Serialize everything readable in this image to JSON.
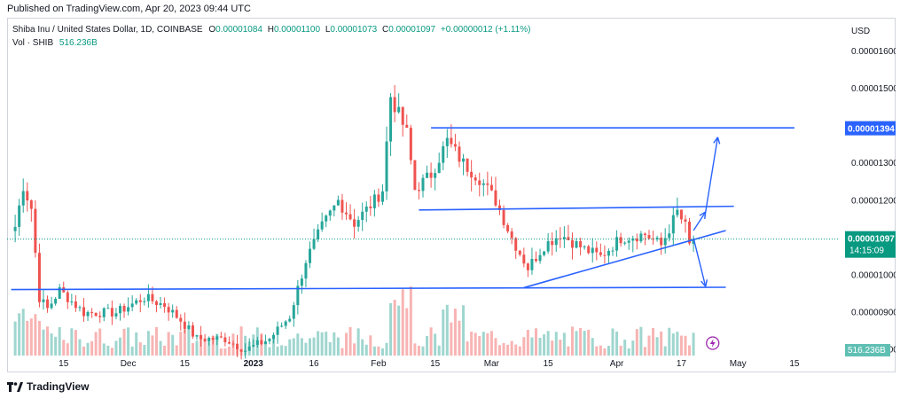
{
  "header": {
    "published": "Published on TradingView.com, Apr 20, 2023 09:44 UTC"
  },
  "legend": {
    "symbol": "Shiba Inu / United States Dollar, 1D, COINBASE",
    "open_label": "O",
    "open": "0.00001084",
    "high_label": "H",
    "high": "0.00001100",
    "low_label": "L",
    "low": "0.00001073",
    "close_label": "C",
    "close": "0.00001097",
    "change": "+0.00000012 (+1.11%)",
    "vol_label": "Vol · SHIB",
    "vol": "516.236B"
  },
  "footer": {
    "brand": "TradingView"
  },
  "colors": {
    "up": "#26a69a",
    "down": "#ef5350",
    "trendline": "#2962ff",
    "up_vol": "#9fd6cf",
    "down_vol": "#f7b4b3",
    "current": "#089981",
    "line_label": "#2962ff"
  },
  "icons": [
    "lightning-icon",
    "tradingview-logo"
  ],
  "chart_data": {
    "type": "candlestick",
    "currency": "USD",
    "ylim": [
      7.4e-06,
      1.69e-05
    ],
    "y_ticks": [
      "0.00001600",
      "0.00001500",
      "0.00001300",
      "0.00001200",
      "0.00001000",
      "0.00000900",
      "0.00000800"
    ],
    "x_ticks": [
      "15",
      "Dec",
      "15",
      "2023",
      "16",
      "Feb",
      "15",
      "Mar",
      "15",
      "Apr",
      "17",
      "May",
      "15"
    ],
    "x_tick_dates": [
      "2022-11-15",
      "2022-12-01",
      "2022-12-15",
      "2023-01-01",
      "2023-01-16",
      "2023-02-01",
      "2023-02-15",
      "2023-03-01",
      "2023-03-15",
      "2023-04-01",
      "2023-04-17",
      "2023-05-01",
      "2023-05-15"
    ],
    "current": {
      "price": "0.00001097",
      "countdown": "14:15:09"
    },
    "marked_level": "0.00001394",
    "volume_label": "516.236B",
    "anchors": [
      [
        "2022-11-03",
        1.13e-05
      ],
      [
        "2022-11-05",
        1.24e-05
      ],
      [
        "2022-11-07",
        1.18e-05
      ],
      [
        "2022-11-09",
        9.4e-06
      ],
      [
        "2022-11-11",
        9.1e-06
      ],
      [
        "2022-11-14",
        9.6e-06
      ],
      [
        "2022-11-20",
        9e-06
      ],
      [
        "2022-11-28",
        9e-06
      ],
      [
        "2022-12-05",
        9.4e-06
      ],
      [
        "2022-12-10",
        9.2e-06
      ],
      [
        "2022-12-14",
        8.8e-06
      ],
      [
        "2022-12-18",
        8.3e-06
      ],
      [
        "2022-12-25",
        8.3e-06
      ],
      [
        "2022-12-30",
        8e-06
      ],
      [
        "2023-01-05",
        8.3e-06
      ],
      [
        "2023-01-10",
        8.9e-06
      ],
      [
        "2023-01-14",
        1.04e-05
      ],
      [
        "2023-01-18",
        1.13e-05
      ],
      [
        "2023-01-22",
        1.2e-05
      ],
      [
        "2023-01-26",
        1.14e-05
      ],
      [
        "2023-01-31",
        1.2e-05
      ],
      [
        "2023-02-02",
        1.23e-05
      ],
      [
        "2023-02-04",
        1.48e-05
      ],
      [
        "2023-02-06",
        1.43e-05
      ],
      [
        "2023-02-08",
        1.38e-05
      ],
      [
        "2023-02-10",
        1.23e-05
      ],
      [
        "2023-02-14",
        1.27e-05
      ],
      [
        "2023-02-18",
        1.36e-05
      ],
      [
        "2023-02-22",
        1.3e-05
      ],
      [
        "2023-02-26",
        1.26e-05
      ],
      [
        "2023-03-02",
        1.2e-05
      ],
      [
        "2023-03-06",
        1.1e-05
      ],
      [
        "2023-03-10",
        1.02e-05
      ],
      [
        "2023-03-14",
        1.08e-05
      ],
      [
        "2023-03-18",
        1.11e-05
      ],
      [
        "2023-03-24",
        1.07e-05
      ],
      [
        "2023-03-28",
        1.05e-05
      ],
      [
        "2023-04-02",
        1.1e-05
      ],
      [
        "2023-04-08",
        1.11e-05
      ],
      [
        "2023-04-12",
        1.08e-05
      ],
      [
        "2023-04-16",
        1.17e-05
      ],
      [
        "2023-04-18",
        1.13e-05
      ],
      [
        "2023-04-19",
        1.08e-05
      ],
      [
        "2023-04-20",
        1.1e-05
      ]
    ],
    "trendlines": [
      {
        "name": "support-line",
        "from": [
          "2022-11-02",
          9.62e-06
        ],
        "to": [
          "2023-04-28",
          9.68e-06
        ]
      },
      {
        "name": "resistance-line-top",
        "from": [
          "2023-02-14",
          1.395e-05
        ],
        "to": [
          "2023-05-15",
          1.395e-05
        ]
      },
      {
        "name": "channel-upper-line",
        "from": [
          "2023-02-11",
          1.175e-05
        ],
        "to": [
          "2023-04-30",
          1.185e-05
        ]
      },
      {
        "name": "channel-lower-line",
        "from": [
          "2023-03-09",
          9.67e-06
        ],
        "to": [
          "2023-04-28",
          1.12e-05
        ]
      }
    ],
    "arrows": [
      {
        "name": "arrow-up-to-resistance",
        "from": [
          "2023-04-23",
          1.17e-05
        ],
        "to": [
          "2023-04-26",
          1.37e-05
        ]
      },
      {
        "name": "arrow-up-small",
        "from": [
          "2023-04-20",
          1.12e-05
        ],
        "to": [
          "2023-04-23",
          1.17e-05
        ]
      },
      {
        "name": "arrow-down-to-support",
        "from": [
          "2023-04-20",
          1.1e-05
        ],
        "to": [
          "2023-04-23",
          9.7e-06
        ]
      }
    ]
  }
}
